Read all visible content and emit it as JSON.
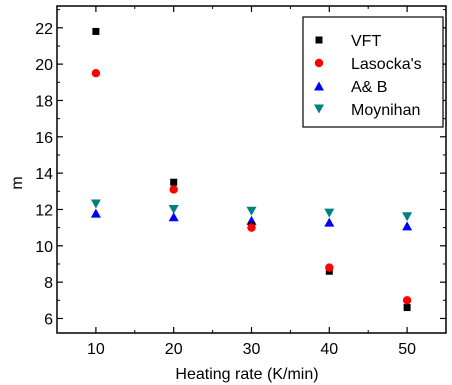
{
  "chart_data": {
    "type": "scatter",
    "title": "",
    "xlabel": "Heating rate (K/min)",
    "ylabel": "m",
    "x": [
      10,
      20,
      30,
      40,
      50
    ],
    "xlim": [
      5,
      55
    ],
    "ylim": [
      5.2,
      23.2
    ],
    "xticks": [
      10,
      20,
      30,
      40,
      50
    ],
    "yticks": [
      6,
      8,
      10,
      12,
      14,
      16,
      18,
      20,
      22
    ],
    "grid": false,
    "legend_position": "top-right",
    "series": [
      {
        "name": "VFT",
        "marker": "square",
        "color": "#000000",
        "values": [
          21.8,
          13.5,
          11.1,
          8.6,
          6.6
        ]
      },
      {
        "name": "Lasocka's",
        "marker": "circle",
        "color": "#ff0000",
        "values": [
          19.5,
          13.1,
          11.0,
          8.8,
          7.0
        ]
      },
      {
        "name": "A& B",
        "marker": "triangle-up",
        "color": "#0000ff",
        "values": [
          11.8,
          11.6,
          11.4,
          11.3,
          11.1
        ]
      },
      {
        "name": "Moynihan",
        "marker": "triangle-down",
        "color": "#008080",
        "values": [
          12.3,
          12.0,
          11.9,
          11.8,
          11.6
        ]
      }
    ]
  }
}
